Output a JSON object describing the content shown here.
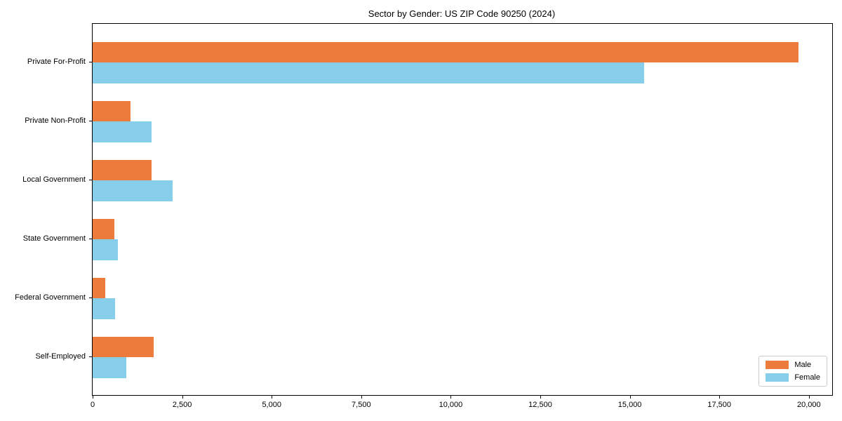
{
  "chart_data": {
    "type": "bar",
    "orientation": "horizontal",
    "title": "Sector by Gender: US ZIP Code 90250 (2024)",
    "xlabel": "",
    "ylabel": "",
    "grid": false,
    "xlim": [
      0,
      20650
    ],
    "categories": [
      "Private For-Profit",
      "Private Non-Profit",
      "Local Government",
      "State Government",
      "Federal Government",
      "Self-Employed"
    ],
    "series": [
      {
        "name": "Male",
        "color": "#ec7b3c",
        "values": [
          19700,
          1050,
          1650,
          600,
          350,
          1700
        ]
      },
      {
        "name": "Female",
        "color": "#87ceeb",
        "values": [
          15400,
          1650,
          2230,
          700,
          630,
          940
        ]
      }
    ],
    "xticks": [
      {
        "value": 0,
        "label": "0"
      },
      {
        "value": 2500,
        "label": "2,500"
      },
      {
        "value": 5000,
        "label": "5,000"
      },
      {
        "value": 7500,
        "label": "7,500"
      },
      {
        "value": 10000,
        "label": "10,000"
      },
      {
        "value": 12500,
        "label": "12,500"
      },
      {
        "value": 15000,
        "label": "15,000"
      },
      {
        "value": 17500,
        "label": "17,500"
      },
      {
        "value": 20000,
        "label": "20,000"
      }
    ],
    "legend": {
      "position": "lower right",
      "entries": [
        "Male",
        "Female"
      ]
    }
  }
}
